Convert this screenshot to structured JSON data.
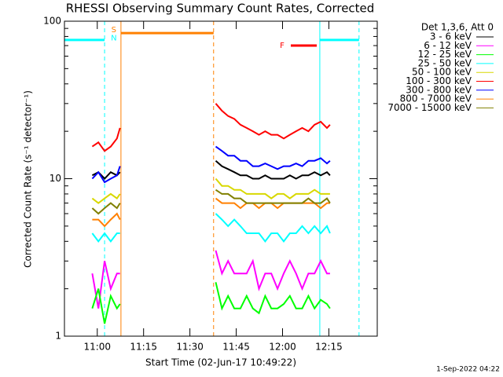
{
  "chart_data": {
    "type": "line",
    "title": "RHESSI Observing Summary Count Rates, Corrected",
    "x_label": "Start Time (02-Jun-17 10:49:22)",
    "y_label": "Corrected Count Rate (s⁻¹ detector⁻¹)",
    "legend_title": "Det 1,3,6, Att 0",
    "date_stamp": "1-Sep-2022 04:22",
    "log_y": true,
    "xlim": [
      0,
      101.3
    ],
    "ylim": [
      1,
      100
    ],
    "yticks": [
      1,
      10,
      100
    ],
    "yminor": [
      2,
      3,
      4,
      5,
      6,
      7,
      8,
      9,
      20,
      30,
      40,
      50,
      60,
      70,
      80,
      90
    ],
    "xticks": [
      {
        "value": 10.63,
        "label": "11:00"
      },
      {
        "value": 25.63,
        "label": "11:15"
      },
      {
        "value": 40.63,
        "label": "11:30"
      },
      {
        "value": 55.63,
        "label": "11:45"
      },
      {
        "value": 70.63,
        "label": "12:00"
      },
      {
        "value": 85.63,
        "label": "12:15"
      }
    ],
    "x": [
      9,
      11,
      13,
      15,
      17,
      18,
      30,
      49,
      51,
      53,
      55,
      57,
      59,
      61,
      63,
      65,
      67,
      69,
      71,
      73,
      75,
      77,
      79,
      81,
      83,
      85,
      86
    ],
    "series": [
      {
        "name": "3 - 6 keV",
        "color": "#000000",
        "values": [
          10.5,
          11,
          10,
          11,
          10.5,
          11,
          null,
          13,
          12,
          11.5,
          11,
          10.5,
          10.5,
          10,
          10,
          10.5,
          10,
          10,
          10,
          10.5,
          10,
          10.5,
          10.5,
          11,
          10.5,
          11,
          10.5
        ]
      },
      {
        "name": "6 - 12 keV",
        "color": "#ff00ff",
        "values": [
          2.5,
          1.5,
          3,
          2,
          2.5,
          2.5,
          null,
          3.5,
          2.5,
          3,
          2.5,
          2.5,
          2.5,
          3,
          2,
          2.5,
          2.5,
          2,
          2.5,
          3,
          2.5,
          2,
          2.5,
          2.5,
          3,
          2.5,
          2.5
        ]
      },
      {
        "name": "12 - 25 keV",
        "color": "#00ff00",
        "values": [
          1.5,
          2,
          1.2,
          1.8,
          1.5,
          1.6,
          null,
          2.2,
          1.5,
          1.8,
          1.5,
          1.5,
          1.8,
          1.5,
          1.4,
          1.8,
          1.5,
          1.5,
          1.6,
          1.8,
          1.5,
          1.5,
          1.8,
          1.5,
          1.7,
          1.6,
          1.5
        ]
      },
      {
        "name": "25 - 50 keV",
        "color": "#00ffff",
        "values": [
          4.5,
          4,
          4.5,
          4,
          4.5,
          4.5,
          null,
          6,
          5.5,
          5,
          5.5,
          5,
          4.5,
          4.5,
          4.5,
          4,
          4.5,
          4.5,
          4,
          4.5,
          4.5,
          5,
          4.5,
          5,
          4.5,
          5,
          4.5
        ]
      },
      {
        "name": "50 - 100 keV",
        "color": "#d8d800",
        "values": [
          7.5,
          7,
          7.5,
          8,
          7.5,
          8,
          null,
          10,
          9,
          9,
          8.5,
          8.5,
          8,
          8,
          8,
          8,
          7.5,
          8,
          8,
          7.5,
          8,
          8,
          8,
          8.5,
          8,
          8,
          8
        ]
      },
      {
        "name": "100 - 300 keV",
        "color": "#ff0000",
        "values": [
          16,
          17,
          15,
          16,
          18,
          21,
          null,
          30,
          27,
          25,
          24,
          22,
          21,
          20,
          19,
          20,
          19,
          19,
          18,
          19,
          20,
          21,
          20,
          22,
          23,
          21,
          22
        ]
      },
      {
        "name": "300 - 800 keV",
        "color": "#0000ff",
        "values": [
          10,
          11,
          9.5,
          10,
          10.5,
          12,
          null,
          16,
          15,
          14,
          14,
          13,
          13,
          12,
          12,
          12.5,
          12,
          11.5,
          12,
          12,
          12.5,
          12,
          13,
          13,
          13.5,
          12.5,
          13
        ]
      },
      {
        "name": "800 - 7000 keV",
        "color": "#ff8000",
        "values": [
          5.5,
          5.5,
          5,
          5.5,
          6,
          5.5,
          null,
          7.5,
          7,
          7,
          7,
          6.5,
          7,
          7,
          6.5,
          7,
          7,
          6.5,
          7,
          7,
          7,
          7,
          7,
          7,
          6.5,
          7,
          7
        ]
      },
      {
        "name": "7000 - 15000 keV",
        "color": "#808000",
        "values": [
          6.5,
          6,
          6.5,
          7,
          6.5,
          7,
          null,
          8.5,
          8,
          8,
          7.5,
          7.5,
          7,
          7,
          7,
          7,
          7,
          7,
          7,
          7,
          7,
          7,
          7.5,
          7,
          7,
          7.5,
          7
        ]
      }
    ],
    "flag_bars": [
      {
        "x": [
          0,
          13
        ],
        "y": 76,
        "color": "#00ffff"
      },
      {
        "x": [
          18.3,
          48.3
        ],
        "y": 84,
        "color": "#ff8000"
      },
      {
        "x": [
          73.3,
          81.7
        ],
        "y": 70,
        "color": "#ff0000"
      },
      {
        "x": [
          82.7,
          95.4
        ],
        "y": 76,
        "color": "#00ffff"
      }
    ],
    "vlines": [
      {
        "x": 0,
        "color": "#00ffff",
        "dashed": false
      },
      {
        "x": 13,
        "color": "#00ffff",
        "dashed": true
      },
      {
        "x": 18.3,
        "color": "#ff8000",
        "dashed": false
      },
      {
        "x": 48.3,
        "color": "#ff8000",
        "dashed": true
      },
      {
        "x": 82.7,
        "color": "#00ffff",
        "dashed": false
      },
      {
        "x": 95.4,
        "color": "#00ffff",
        "dashed": true
      }
    ],
    "flag_labels": [
      {
        "text": "S",
        "x": 16,
        "y": 88,
        "color": "#ff8000"
      },
      {
        "text": "N",
        "x": 16,
        "y": 78,
        "color": "#00ffff"
      },
      {
        "text": "F",
        "x": 70.5,
        "y": 70,
        "color": "#ff0000"
      }
    ]
  }
}
